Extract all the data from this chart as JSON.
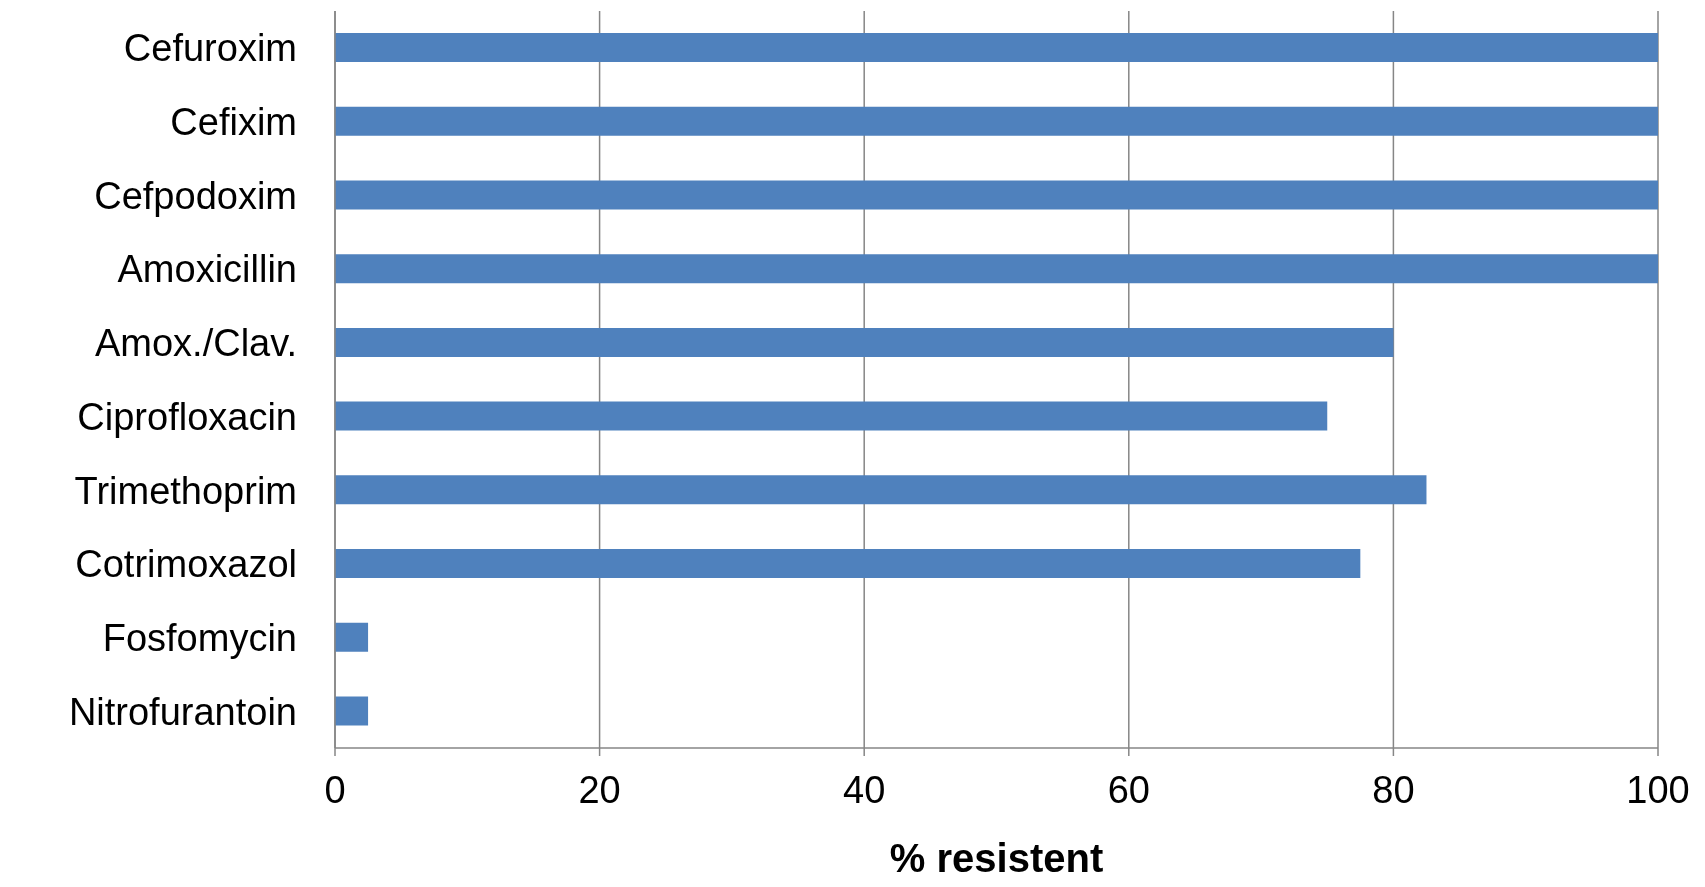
{
  "chart_data": {
    "type": "bar",
    "orientation": "horizontal",
    "xlabel": "% resistent",
    "categories": [
      "Cefuroxim",
      "Cefixim",
      "Cefpodoxim",
      "Amoxicillin",
      "Amox./Clav.",
      "Ciprofloxacin",
      "Trimethoprim",
      "Cotrimoxazol",
      "Fosfomycin",
      "Nitrofurantoin"
    ],
    "values": [
      100,
      100,
      100,
      100,
      80,
      75,
      82.5,
      77.5,
      2.5,
      2.5
    ],
    "color": "#4f81bd",
    "xlim": [
      0,
      100
    ],
    "xticks": [
      0,
      20,
      40,
      60,
      80,
      100
    ],
    "grid": "x"
  }
}
